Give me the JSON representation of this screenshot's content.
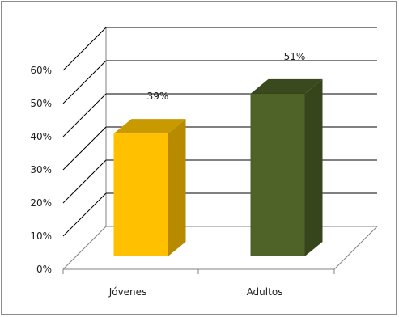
{
  "chart_data": {
    "type": "bar",
    "title": "",
    "xlabel": "",
    "ylabel": "",
    "categories": [
      "Jóvenes",
      "Adultos"
    ],
    "values": [
      39,
      51
    ],
    "data_labels": [
      "39%",
      "51%"
    ],
    "ylim": [
      0,
      60
    ],
    "yticks": [
      0,
      10,
      20,
      30,
      40,
      50,
      60
    ],
    "ytick_labels": [
      "0%",
      "10%",
      "20%",
      "30%",
      "40%",
      "50%",
      "60%"
    ],
    "grid": true,
    "legend": "none",
    "style": "3d-column",
    "colors": {
      "bar_front": [
        "#FFC000",
        "#4F6228"
      ],
      "bar_side": [
        "#B88A00",
        "#37451C"
      ],
      "bar_top": [
        "#C99A00",
        "#3A491E"
      ],
      "grid": "#000000",
      "axis": "#808080"
    }
  }
}
